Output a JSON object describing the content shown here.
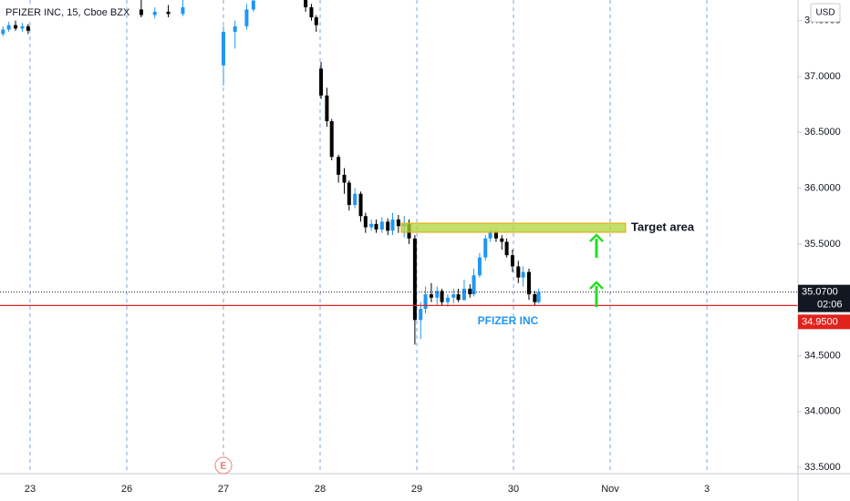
{
  "chart_data": {
    "type": "candlestick",
    "title": "PFIZER INC, 15, Cboe BZX",
    "currency": "USD",
    "up_color": "#2196f3",
    "down_color": "#000000",
    "x": [
      -0.28,
      -0.22,
      -0.15,
      -0.08,
      -0.02,
      1.15,
      1.29,
      1.43,
      1.58,
      2.0,
      2.12,
      2.24,
      2.31,
      2.85,
      2.91,
      2.96,
      3.01,
      3.07,
      3.12,
      3.19,
      3.25,
      3.3,
      3.36,
      3.42,
      3.47,
      3.53,
      3.58,
      3.64,
      3.7,
      3.75,
      3.81,
      3.87,
      3.92,
      3.98,
      4.04,
      4.09,
      4.15,
      4.21,
      4.26,
      4.32,
      4.38,
      4.43,
      4.49,
      4.55,
      4.59,
      4.65,
      4.71,
      4.76,
      4.82,
      4.88,
      4.93,
      4.99,
      5.05,
      5.1,
      5.16,
      5.22,
      5.26
    ],
    "open": [
      37.38,
      37.42,
      37.46,
      37.43,
      37.45,
      37.6,
      37.55,
      37.58,
      37.56,
      37.1,
      37.4,
      37.45,
      37.6,
      37.7,
      37.62,
      37.53,
      37.07,
      36.83,
      36.6,
      36.28,
      36.12,
      36.05,
      35.85,
      35.95,
      35.75,
      35.65,
      35.68,
      35.63,
      35.7,
      35.62,
      35.72,
      35.66,
      35.68,
      35.55,
      34.82,
      34.92,
      35.05,
      35.02,
      35.08,
      34.98,
      35.02,
      35.05,
      35.0,
      35.1,
      35.05,
      35.22,
      35.38,
      35.55,
      35.6,
      35.55,
      35.52,
      35.4,
      35.3,
      35.2,
      35.25,
      35.05,
      34.98
    ],
    "high": [
      37.45,
      37.49,
      37.5,
      37.48,
      37.47,
      37.7,
      37.62,
      37.64,
      37.7,
      37.45,
      37.5,
      37.65,
      37.72,
      37.74,
      37.65,
      37.55,
      37.13,
      36.9,
      36.62,
      36.3,
      36.18,
      36.07,
      36.0,
      35.97,
      35.78,
      35.72,
      35.72,
      35.74,
      35.73,
      35.78,
      35.76,
      35.75,
      35.72,
      35.58,
      34.98,
      35.12,
      35.15,
      35.12,
      35.1,
      35.05,
      35.1,
      35.1,
      35.18,
      35.14,
      35.28,
      35.42,
      35.58,
      35.63,
      35.62,
      35.58,
      35.55,
      35.45,
      35.35,
      35.3,
      35.28,
      35.08,
      35.1
    ],
    "low": [
      37.36,
      37.4,
      37.41,
      37.4,
      37.38,
      37.53,
      37.52,
      37.53,
      37.54,
      36.92,
      37.25,
      37.42,
      37.58,
      37.58,
      37.5,
      37.4,
      36.8,
      36.55,
      36.25,
      36.05,
      35.95,
      35.8,
      35.82,
      35.7,
      35.6,
      35.62,
      35.6,
      35.6,
      35.58,
      35.58,
      35.6,
      35.56,
      35.5,
      34.6,
      34.65,
      34.88,
      34.98,
      34.95,
      34.95,
      34.94,
      34.97,
      34.98,
      34.99,
      35.02,
      35.03,
      35.2,
      35.35,
      35.52,
      35.52,
      35.45,
      35.38,
      35.25,
      35.15,
      35.12,
      35.0,
      34.95,
      34.97
    ],
    "close": [
      37.42,
      37.46,
      37.43,
      37.45,
      37.41,
      37.55,
      37.58,
      37.56,
      37.62,
      37.4,
      37.45,
      37.6,
      37.68,
      37.62,
      37.53,
      37.46,
      36.83,
      36.6,
      36.28,
      36.12,
      36.05,
      35.85,
      35.95,
      35.75,
      35.65,
      35.68,
      35.63,
      35.7,
      35.62,
      35.72,
      35.66,
      35.68,
      35.55,
      34.82,
      34.92,
      35.05,
      35.02,
      35.08,
      34.98,
      35.02,
      35.05,
      35.0,
      35.1,
      35.05,
      35.22,
      35.38,
      35.55,
      35.6,
      35.55,
      35.52,
      35.4,
      35.3,
      35.2,
      35.25,
      35.05,
      34.98,
      35.07
    ],
    "xlim": [
      -0.311,
      7.943
    ],
    "xticks": [
      {
        "value": 0,
        "label": "23"
      },
      {
        "value": 1,
        "label": "26"
      },
      {
        "value": 2,
        "label": "27"
      },
      {
        "value": 3,
        "label": "28"
      },
      {
        "value": 4,
        "label": "29"
      },
      {
        "value": 5,
        "label": "30"
      },
      {
        "value": 6,
        "label": "Nov"
      },
      {
        "value": 7,
        "label": "3"
      }
    ],
    "ylim": [
      33.444,
      37.685
    ],
    "yticks": [
      {
        "value": 33.5,
        "label": "33.5000"
      },
      {
        "value": 34.0,
        "label": "34.0000"
      },
      {
        "value": 34.5,
        "label": "34.5000"
      },
      {
        "value": 35.0,
        "label": "35.0000"
      },
      {
        "value": 35.5,
        "label": "35.5000"
      },
      {
        "value": 36.0,
        "label": "36.0000"
      },
      {
        "value": 36.5,
        "label": "36.5000"
      },
      {
        "value": 37.0,
        "label": "37.0000"
      },
      {
        "value": 37.5,
        "label": "37.5000"
      }
    ],
    "last_price": {
      "value": 35.07,
      "label": "35.0700"
    },
    "countdown": "02:06",
    "line_price": {
      "value": 34.95,
      "label": "34.9500"
    },
    "annotations": {
      "target": "Target area",
      "name": "PFIZER INC",
      "earnings": "E"
    }
  }
}
